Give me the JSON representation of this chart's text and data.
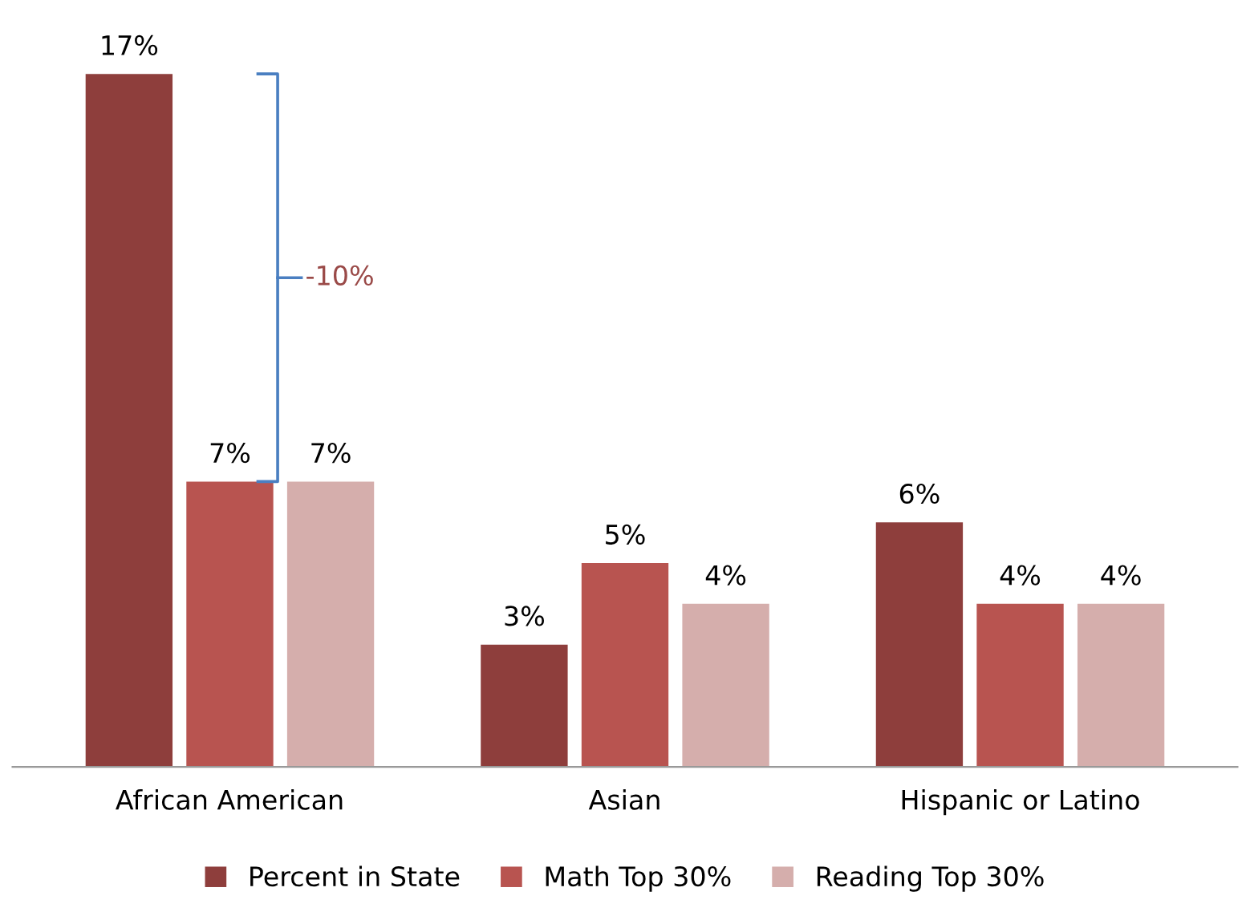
{
  "chart_data": {
    "type": "bar",
    "categories": [
      "African American",
      "Asian",
      "Hispanic or Latino"
    ],
    "series": [
      {
        "name": "Percent in State",
        "color": "#8e3e3c",
        "values": [
          17,
          3,
          6
        ],
        "value_labels": [
          "17%",
          "3%",
          "6%"
        ]
      },
      {
        "name": "Math Top 30%",
        "color": "#b85450",
        "values": [
          7,
          5,
          4
        ],
        "value_labels": [
          "7%",
          "5%",
          "4%"
        ]
      },
      {
        "name": "Reading Top 30%",
        "color": "#d5aeac",
        "values": [
          7,
          4,
          4
        ],
        "value_labels": [
          "7%",
          "4%",
          "4%"
        ]
      }
    ],
    "legend": "bottom",
    "grid": false,
    "annotations": [
      "-10%"
    ]
  }
}
